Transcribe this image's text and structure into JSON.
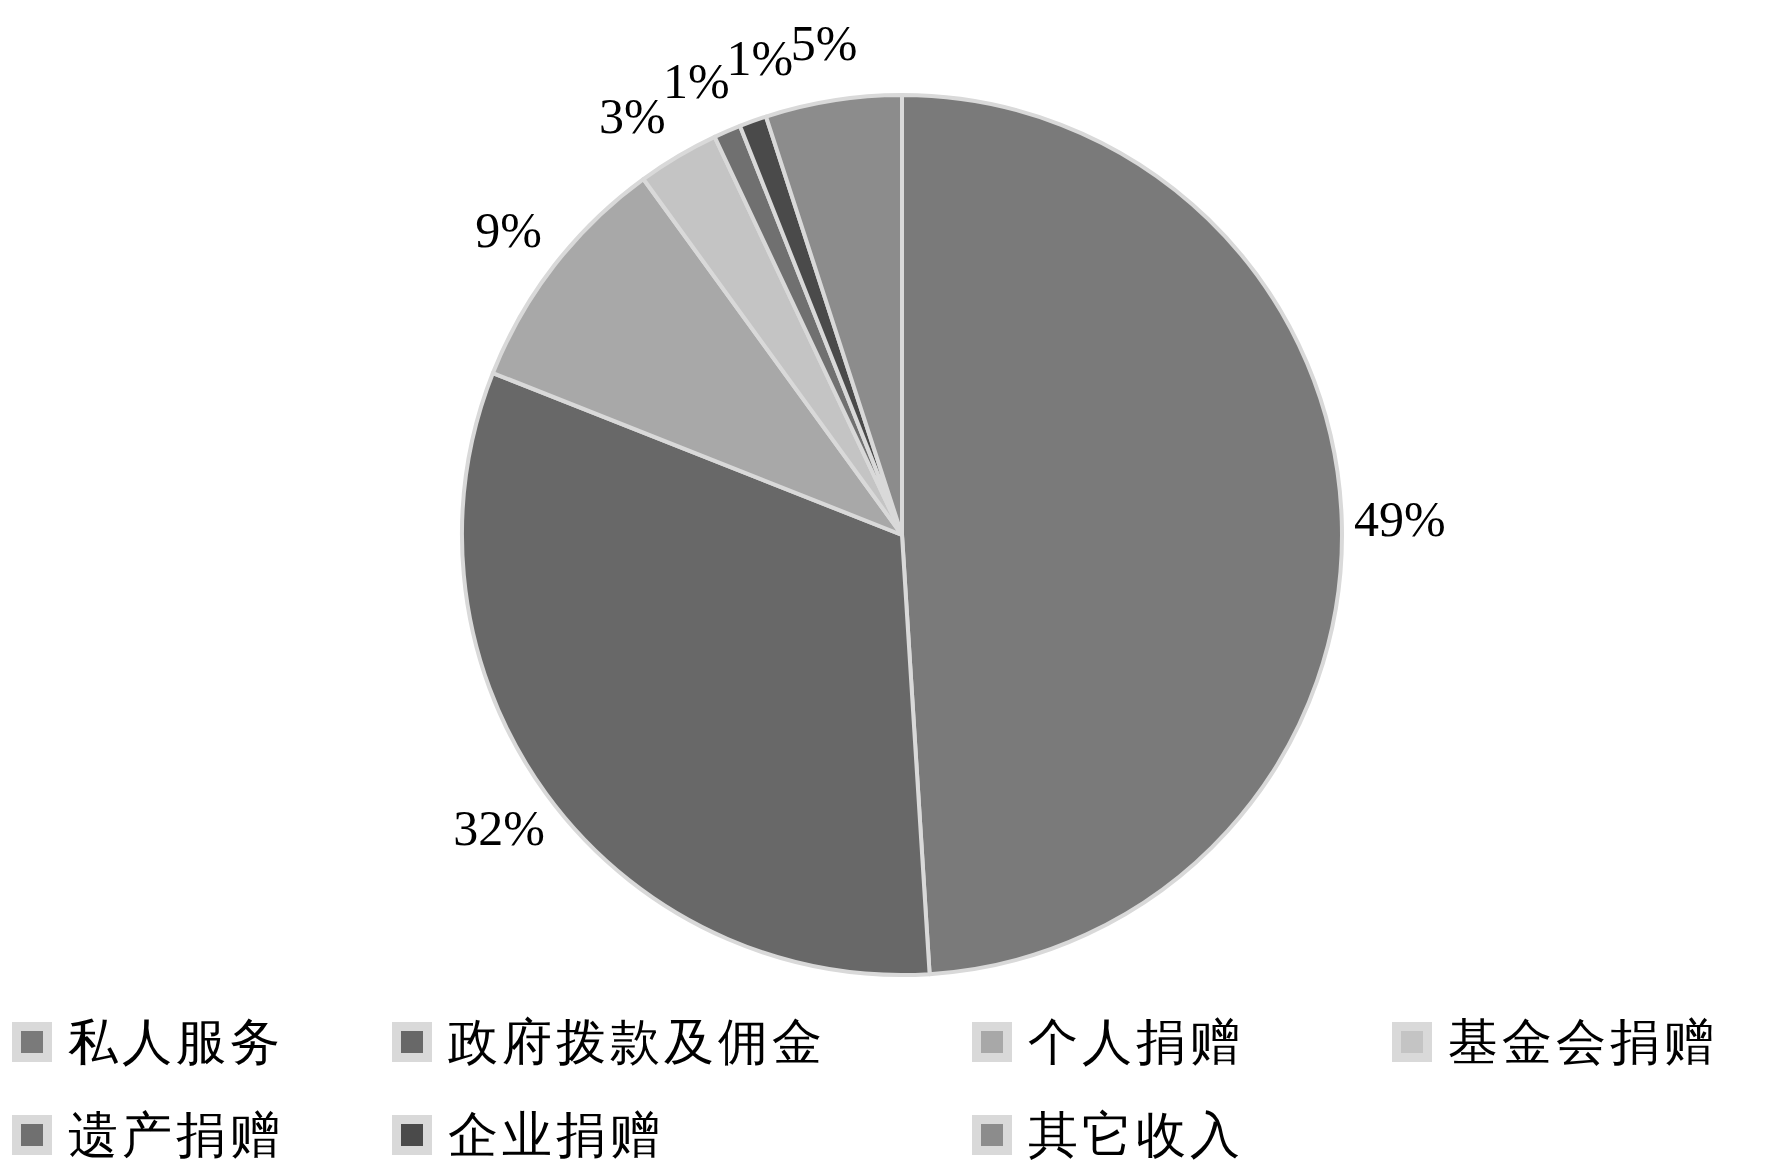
{
  "chart_data": {
    "type": "pie",
    "categories": [
      "私人服务",
      "政府拨款及佣金",
      "个人捐赠",
      "基金会捐赠",
      "遗产捐赠",
      "企业捐赠",
      "其它收入"
    ],
    "values": [
      49,
      32,
      9,
      3,
      1,
      1,
      5
    ],
    "colors": [
      "#7a7a7a",
      "#686868",
      "#a8a8a8",
      "#c4c4c4",
      "#707070",
      "#4a4a4a",
      "#8c8c8c"
    ],
    "value_labels": [
      "49%",
      "32%",
      "9%",
      "3%",
      "1%",
      "1%",
      "5%"
    ],
    "legend": "bottom"
  }
}
